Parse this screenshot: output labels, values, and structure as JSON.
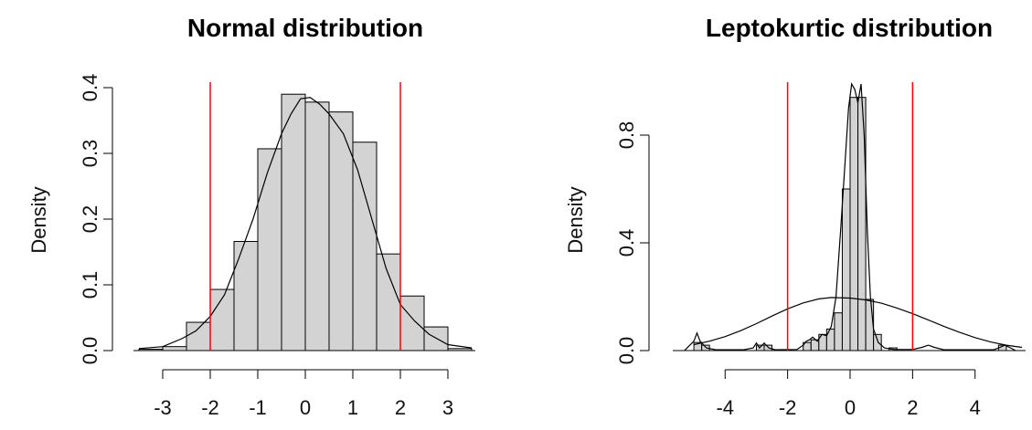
{
  "chart_data": [
    {
      "type": "histogram",
      "title": "Normal distribution",
      "xlabel": "",
      "ylabel": "Density",
      "xlim": [
        -3.5,
        3.5
      ],
      "ylim": [
        0,
        0.4
      ],
      "xticks": [
        -3,
        -2,
        -1,
        0,
        1,
        2,
        3
      ],
      "yticks": [
        0.0,
        0.1,
        0.2,
        0.3,
        0.4
      ],
      "xtick_labels": [
        "-3",
        "-2",
        "-1",
        "0",
        "1",
        "2",
        "3"
      ],
      "ytick_labels": [
        "0.0",
        "0.1",
        "0.2",
        "0.3",
        "0.4"
      ],
      "grid": false,
      "bins": [
        {
          "x0": -3.5,
          "x1": -3.0,
          "density": 0.002
        },
        {
          "x0": -3.0,
          "x1": -2.5,
          "density": 0.006
        },
        {
          "x0": -2.5,
          "x1": -2.0,
          "density": 0.043
        },
        {
          "x0": -2.0,
          "x1": -1.5,
          "density": 0.093
        },
        {
          "x0": -1.5,
          "x1": -1.0,
          "density": 0.166
        },
        {
          "x0": -1.0,
          "x1": -0.5,
          "density": 0.307
        },
        {
          "x0": -0.5,
          "x1": 0.0,
          "density": 0.39
        },
        {
          "x0": 0.0,
          "x1": 0.5,
          "density": 0.378
        },
        {
          "x0": 0.5,
          "x1": 1.0,
          "density": 0.363
        },
        {
          "x0": 1.0,
          "x1": 1.5,
          "density": 0.317
        },
        {
          "x0": 1.5,
          "x1": 2.0,
          "density": 0.147
        },
        {
          "x0": 2.0,
          "x1": 2.5,
          "density": 0.083
        },
        {
          "x0": 2.5,
          "x1": 3.0,
          "density": 0.036
        },
        {
          "x0": 3.0,
          "x1": 3.5,
          "density": 0.003
        }
      ],
      "density_curve": [
        [
          -3.5,
          0.003
        ],
        [
          -3.0,
          0.006
        ],
        [
          -2.6,
          0.018
        ],
        [
          -2.3,
          0.03
        ],
        [
          -2.0,
          0.052
        ],
        [
          -1.7,
          0.085
        ],
        [
          -1.4,
          0.14
        ],
        [
          -1.1,
          0.2
        ],
        [
          -0.8,
          0.27
        ],
        [
          -0.5,
          0.33
        ],
        [
          -0.3,
          0.36
        ],
        [
          -0.1,
          0.383
        ],
        [
          0.1,
          0.385
        ],
        [
          0.3,
          0.375
        ],
        [
          0.5,
          0.36
        ],
        [
          0.8,
          0.33
        ],
        [
          1.1,
          0.275
        ],
        [
          1.4,
          0.2
        ],
        [
          1.7,
          0.125
        ],
        [
          2.0,
          0.07
        ],
        [
          2.3,
          0.045
        ],
        [
          2.6,
          0.025
        ],
        [
          3.0,
          0.009
        ],
        [
          3.5,
          0.004
        ]
      ],
      "vlines": [
        -2,
        2
      ],
      "vline_color": "#ff0000",
      "bar_color": "#d3d3d3"
    },
    {
      "type": "histogram",
      "title": "Leptokurtic distribution",
      "xlabel": "",
      "ylabel": "Density",
      "xlim": [
        -5.5,
        5.5
      ],
      "ylim": [
        0,
        0.8
      ],
      "xticks": [
        -4,
        -2,
        0,
        2,
        4
      ],
      "yticks": [
        0.0,
        0.4,
        0.8
      ],
      "xtick_labels": [
        "-4",
        "-2",
        "0",
        "2",
        "4"
      ],
      "ytick_labels": [
        "0.0",
        "0.4",
        "0.8"
      ],
      "grid": false,
      "bins": [
        {
          "x0": -5.0,
          "x1": -4.75,
          "density": 0.03
        },
        {
          "x0": -4.75,
          "x1": -4.5,
          "density": 0.02
        },
        {
          "x0": -3.0,
          "x1": -2.75,
          "density": 0.02
        },
        {
          "x0": -2.75,
          "x1": -2.5,
          "density": 0.02
        },
        {
          "x0": -1.5,
          "x1": -1.25,
          "density": 0.03
        },
        {
          "x0": -1.25,
          "x1": -1.0,
          "density": 0.04
        },
        {
          "x0": -1.0,
          "x1": -0.75,
          "density": 0.06
        },
        {
          "x0": -0.75,
          "x1": -0.5,
          "density": 0.08
        },
        {
          "x0": -0.5,
          "x1": -0.25,
          "density": 0.14
        },
        {
          "x0": -0.25,
          "x1": 0.0,
          "density": 0.6
        },
        {
          "x0": 0.0,
          "x1": 0.25,
          "density": 0.94
        },
        {
          "x0": 0.25,
          "x1": 0.5,
          "density": 0.94
        },
        {
          "x0": 0.5,
          "x1": 0.75,
          "density": 0.19
        },
        {
          "x0": 0.75,
          "x1": 1.0,
          "density": 0.06
        },
        {
          "x0": 1.25,
          "x1": 1.5,
          "density": 0.01
        },
        {
          "x0": 4.75,
          "x1": 5.0,
          "density": 0.02
        }
      ],
      "kde_curve": [
        [
          -5.3,
          0.0
        ],
        [
          -5.0,
          0.035
        ],
        [
          -4.9,
          0.065
        ],
        [
          -4.8,
          0.035
        ],
        [
          -4.6,
          0.01
        ],
        [
          -4.3,
          0.003
        ],
        [
          -3.4,
          0.003
        ],
        [
          -3.1,
          0.01
        ],
        [
          -3.0,
          0.028
        ],
        [
          -2.9,
          0.01
        ],
        [
          -2.75,
          0.028
        ],
        [
          -2.6,
          0.01
        ],
        [
          -2.4,
          0.003
        ],
        [
          -1.7,
          0.004
        ],
        [
          -1.5,
          0.02
        ],
        [
          -1.4,
          0.035
        ],
        [
          -1.3,
          0.04
        ],
        [
          -1.2,
          0.05
        ],
        [
          -1.05,
          0.035
        ],
        [
          -0.9,
          0.06
        ],
        [
          -0.75,
          0.055
        ],
        [
          -0.6,
          0.09
        ],
        [
          -0.45,
          0.2
        ],
        [
          -0.3,
          0.45
        ],
        [
          -0.15,
          0.72
        ],
        [
          -0.05,
          0.9
        ],
        [
          0.05,
          0.99
        ],
        [
          0.15,
          0.97
        ],
        [
          0.25,
          0.92
        ],
        [
          0.35,
          0.99
        ],
        [
          0.45,
          0.8
        ],
        [
          0.55,
          0.45
        ],
        [
          0.65,
          0.2
        ],
        [
          0.75,
          0.08
        ],
        [
          0.9,
          0.03
        ],
        [
          1.1,
          0.01
        ],
        [
          1.4,
          0.004
        ],
        [
          2.0,
          0.004
        ],
        [
          2.3,
          0.012
        ],
        [
          2.5,
          0.02
        ],
        [
          2.7,
          0.012
        ],
        [
          3.0,
          0.003
        ],
        [
          4.6,
          0.003
        ],
        [
          4.8,
          0.012
        ],
        [
          4.95,
          0.02
        ],
        [
          5.1,
          0.012
        ],
        [
          5.3,
          0.0
        ]
      ],
      "normal_curve": [
        [
          -5.0,
          0.022
        ],
        [
          -4.5,
          0.035
        ],
        [
          -4.0,
          0.052
        ],
        [
          -3.5,
          0.074
        ],
        [
          -3.0,
          0.1
        ],
        [
          -2.5,
          0.128
        ],
        [
          -2.0,
          0.155
        ],
        [
          -1.5,
          0.177
        ],
        [
          -1.0,
          0.192
        ],
        [
          -0.6,
          0.197
        ],
        [
          0.0,
          0.195
        ],
        [
          0.5,
          0.188
        ],
        [
          1.0,
          0.176
        ],
        [
          1.5,
          0.158
        ],
        [
          2.0,
          0.137
        ],
        [
          2.5,
          0.114
        ],
        [
          3.0,
          0.09
        ],
        [
          3.5,
          0.068
        ],
        [
          4.0,
          0.048
        ],
        [
          4.5,
          0.032
        ],
        [
          5.0,
          0.02
        ],
        [
          5.5,
          0.012
        ]
      ],
      "vlines": [
        -2,
        2
      ],
      "vline_color": "#ff0000",
      "bar_color": "#d3d3d3"
    }
  ]
}
